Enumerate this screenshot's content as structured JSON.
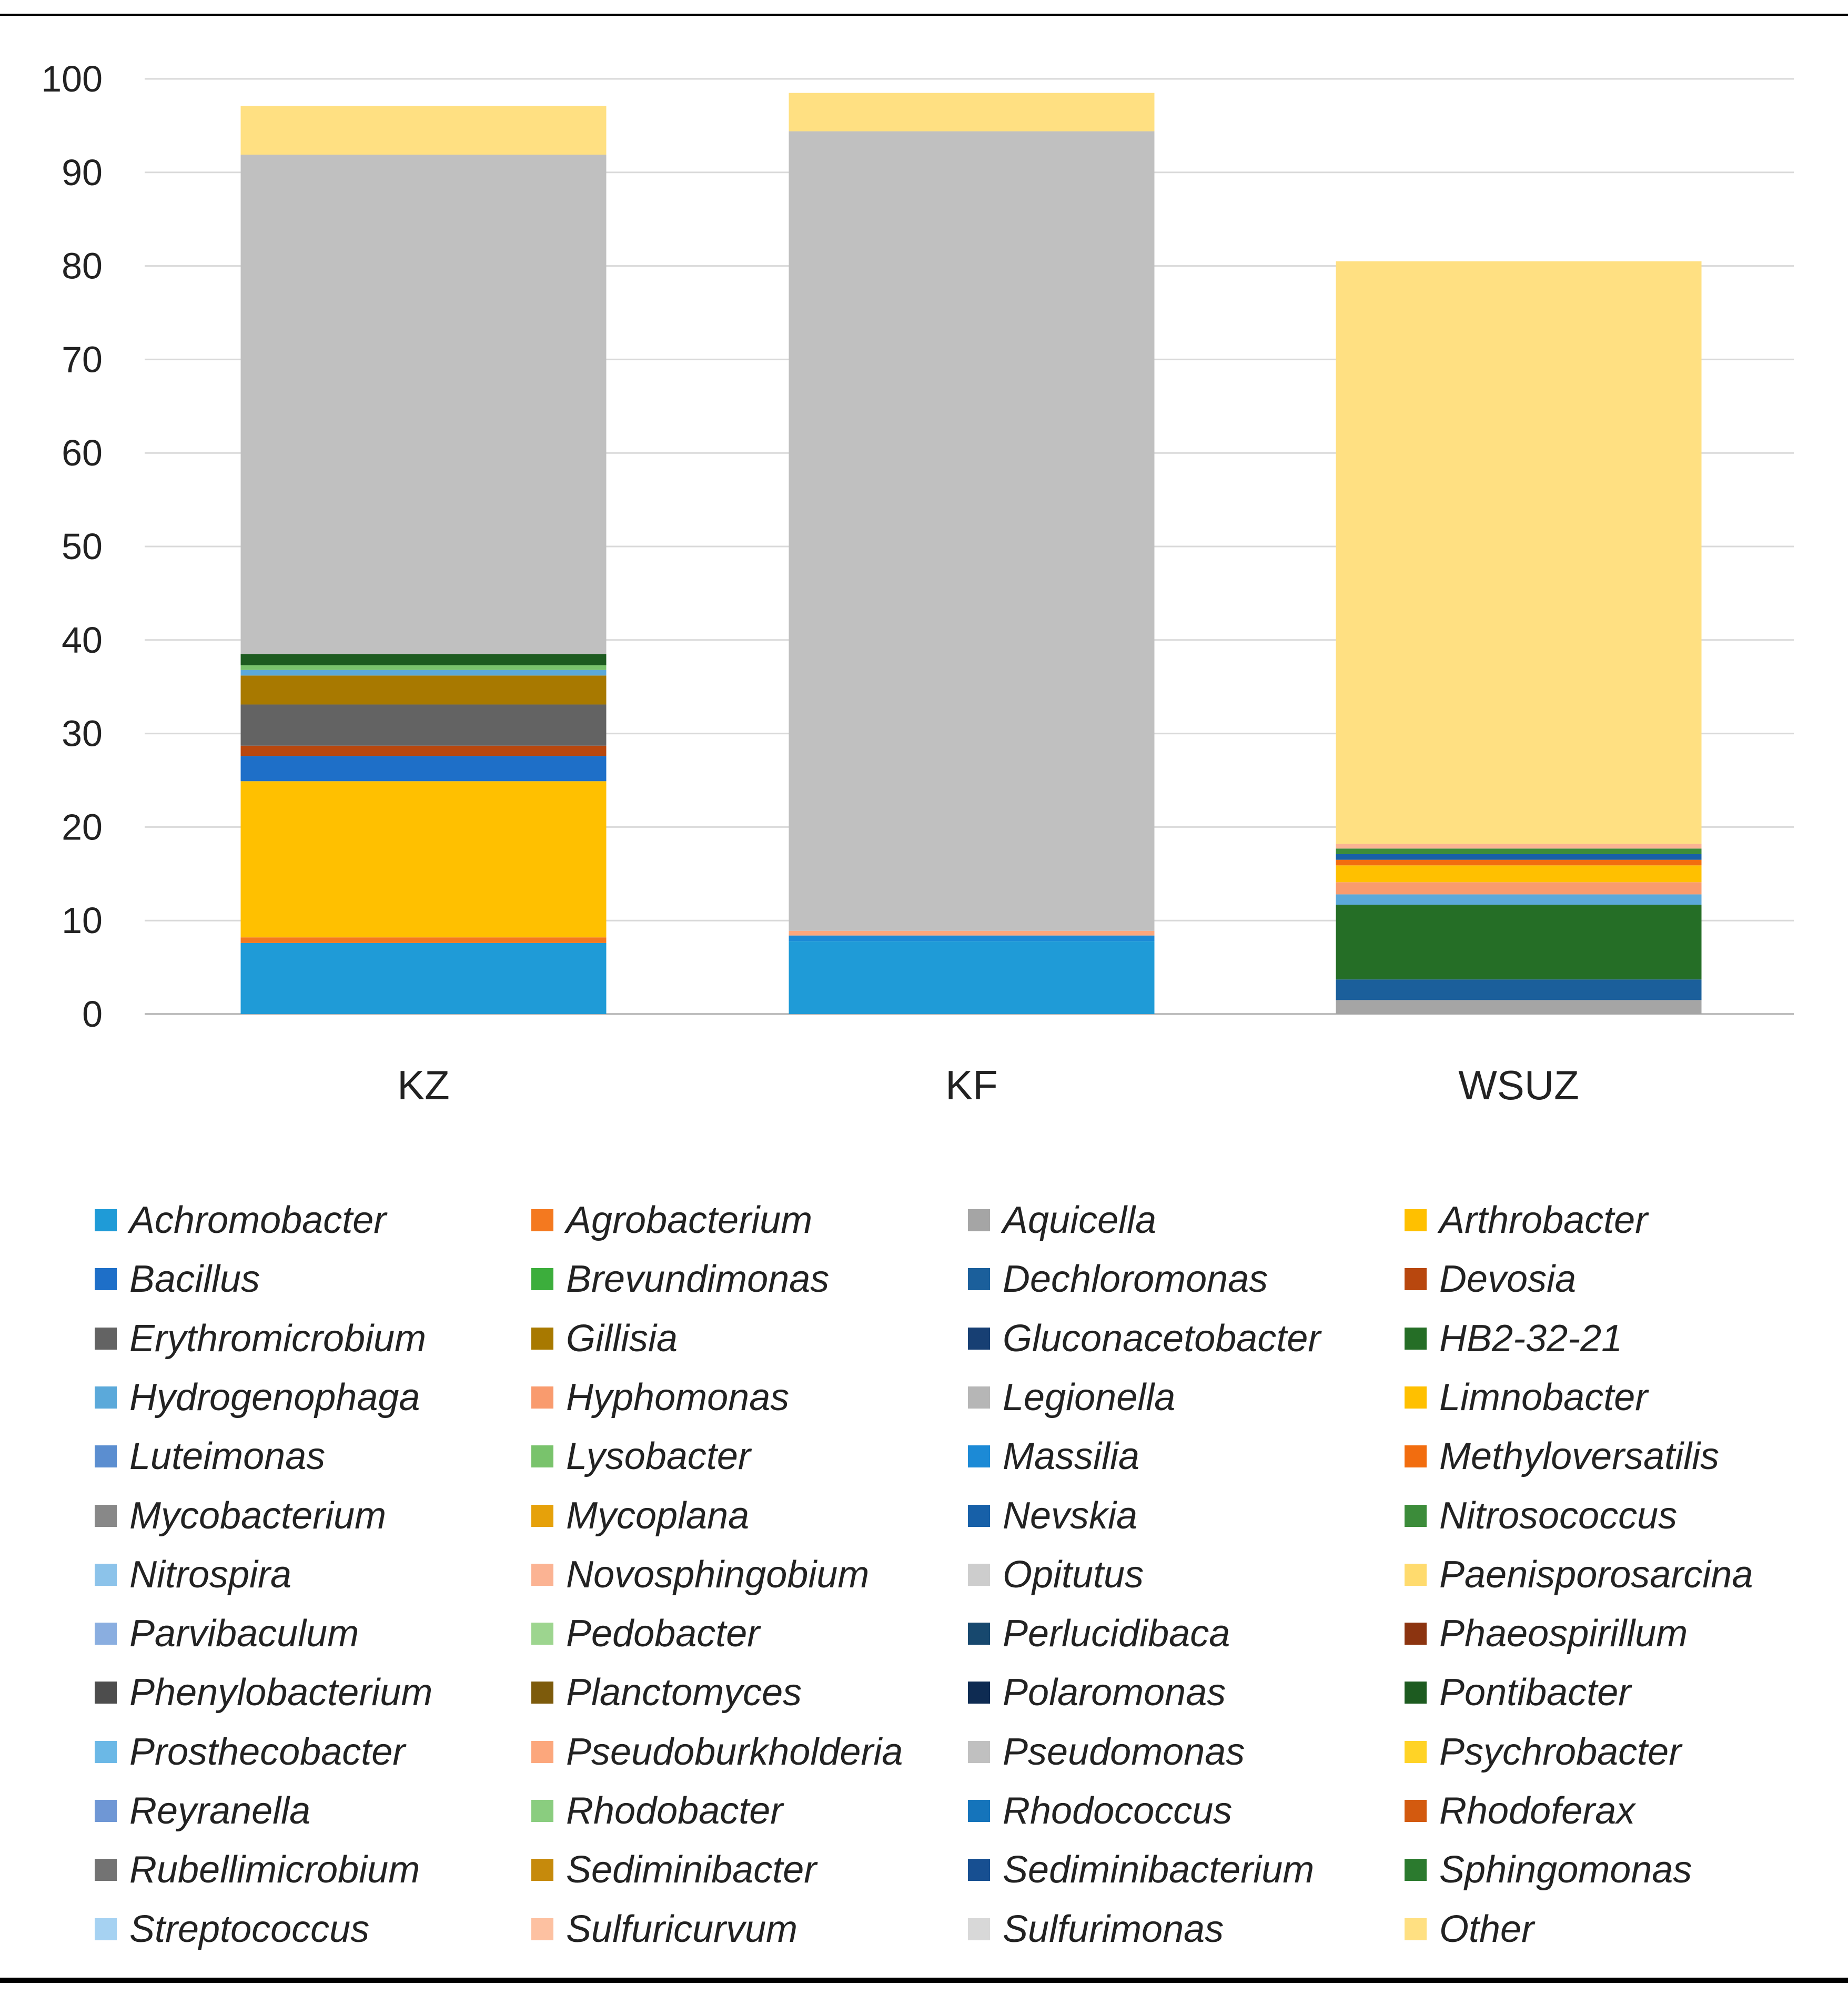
{
  "chart_data": {
    "type": "bar",
    "stacked": true,
    "title": "",
    "xlabel": "",
    "ylabel": "",
    "ylim": [
      0,
      100
    ],
    "yticks": [
      0,
      10,
      20,
      30,
      40,
      50,
      60,
      70,
      80,
      90,
      100
    ],
    "grid": true,
    "legend_position": "bottom",
    "categories": [
      "KZ",
      "KF",
      "WSUZ"
    ],
    "series": [
      {
        "name": "Achromobacter",
        "color": "#1f9bd7",
        "values": [
          7.6,
          7.8,
          0
        ]
      },
      {
        "name": "Agrobacterium",
        "color": "#f4791f",
        "values": [
          0.6,
          0,
          0
        ]
      },
      {
        "name": "Aquicella",
        "color": "#a5a5a5",
        "values": [
          0,
          0,
          1.5
        ]
      },
      {
        "name": "Arthrobacter",
        "color": "#ffc000",
        "values": [
          16.7,
          0,
          0
        ]
      },
      {
        "name": "Bacillus",
        "color": "#1e6fc8",
        "values": [
          2.7,
          0,
          0
        ]
      },
      {
        "name": "Brevundimonas",
        "color": "#3cae3c",
        "values": [
          0,
          0,
          0
        ]
      },
      {
        "name": "Dechloromonas",
        "color": "#1b5f9b",
        "values": [
          0,
          0,
          2.2
        ]
      },
      {
        "name": "Devosia",
        "color": "#b8470e",
        "values": [
          1.1,
          0,
          0
        ]
      },
      {
        "name": "Erythromicrobium",
        "color": "#636363",
        "values": [
          4.4,
          0,
          0
        ]
      },
      {
        "name": "Gillisia",
        "color": "#a87900",
        "values": [
          3.1,
          0,
          0
        ]
      },
      {
        "name": "Gluconacetobacter",
        "color": "#173f73",
        "values": [
          0,
          0,
          0
        ]
      },
      {
        "name": "HB2-32-21",
        "color": "#256e26",
        "values": [
          0,
          0,
          8.0
        ]
      },
      {
        "name": "Hydrogenophaga",
        "color": "#5ba9da",
        "values": [
          0.6,
          0,
          1.1
        ]
      },
      {
        "name": "Hyphomonas",
        "color": "#f99b6e",
        "values": [
          0,
          0,
          1.3
        ]
      },
      {
        "name": "Legionella",
        "color": "#b6b6b6",
        "values": [
          0,
          0,
          0
        ]
      },
      {
        "name": "Limnobacter",
        "color": "#ffc000",
        "values": [
          0,
          0,
          1.8
        ]
      },
      {
        "name": "Luteimonas",
        "color": "#5b8ed0",
        "values": [
          0,
          0,
          0
        ]
      },
      {
        "name": "Lysobacter",
        "color": "#79c36c",
        "values": [
          0.5,
          0,
          0
        ]
      },
      {
        "name": "Massilia",
        "color": "#1c8ad6",
        "values": [
          0,
          0.6,
          0
        ]
      },
      {
        "name": "Methyloversatilis",
        "color": "#f26d0f",
        "values": [
          0,
          0,
          0.6
        ]
      },
      {
        "name": "Mycobacterium",
        "color": "#888888",
        "values": [
          0,
          0,
          0
        ]
      },
      {
        "name": "Mycoplana",
        "color": "#e6a10a",
        "values": [
          0,
          0,
          0
        ]
      },
      {
        "name": "Nevskia",
        "color": "#1760a8",
        "values": [
          0,
          0,
          0.6
        ]
      },
      {
        "name": "Nitrosococcus",
        "color": "#3c8c3a",
        "values": [
          0,
          0,
          0.6
        ]
      },
      {
        "name": "Nitrospira",
        "color": "#8cc3ea",
        "values": [
          0,
          0,
          0
        ]
      },
      {
        "name": "Novosphingobium",
        "color": "#fbb393",
        "values": [
          0,
          0,
          0.5
        ]
      },
      {
        "name": "Opitutus",
        "color": "#cdcdcd",
        "values": [
          0,
          0,
          0
        ]
      },
      {
        "name": "Paenisporosarcina",
        "color": "#ffdb6e",
        "values": [
          0,
          0,
          0
        ]
      },
      {
        "name": "Parvibaculum",
        "color": "#8aaee0",
        "values": [
          0,
          0,
          0
        ]
      },
      {
        "name": "Pedobacter",
        "color": "#9dd58f",
        "values": [
          0,
          0,
          0
        ]
      },
      {
        "name": "Perlucidibaca",
        "color": "#17486e",
        "values": [
          0,
          0,
          0
        ]
      },
      {
        "name": "Phaeospirillum",
        "color": "#8c3410",
        "values": [
          0,
          0,
          0
        ]
      },
      {
        "name": "Phenylobacterium",
        "color": "#4d4d4d",
        "values": [
          0,
          0,
          0
        ]
      },
      {
        "name": "Planctomyces",
        "color": "#7d5b0c",
        "values": [
          0,
          0,
          0
        ]
      },
      {
        "name": "Polaromonas",
        "color": "#0e2b52",
        "values": [
          0,
          0,
          0
        ]
      },
      {
        "name": "Pontibacter",
        "color": "#1d5b20",
        "values": [
          1.2,
          0,
          0
        ]
      },
      {
        "name": "Prosthecobacter",
        "color": "#6bb8e6",
        "values": [
          0,
          0,
          0
        ]
      },
      {
        "name": "Pseudoburkholderia",
        "color": "#fca77c",
        "values": [
          0,
          0.5,
          0
        ]
      },
      {
        "name": "Pseudomonas",
        "color": "#c0c0c0",
        "values": [
          53.4,
          85.5,
          0
        ]
      },
      {
        "name": "Psychrobacter",
        "color": "#ffd326",
        "values": [
          0,
          0,
          0
        ]
      },
      {
        "name": "Reyranella",
        "color": "#6f97d5",
        "values": [
          0,
          0,
          0
        ]
      },
      {
        "name": "Rhodobacter",
        "color": "#8acd7f",
        "values": [
          0,
          0,
          0
        ]
      },
      {
        "name": "Rhodococcus",
        "color": "#1574bb",
        "values": [
          0,
          0,
          0
        ]
      },
      {
        "name": "Rhodoferax",
        "color": "#d35a0f",
        "values": [
          0,
          0,
          0
        ]
      },
      {
        "name": "Rubellimicrobium",
        "color": "#737373",
        "values": [
          0,
          0,
          0
        ]
      },
      {
        "name": "Sediminibacter",
        "color": "#c68a0c",
        "values": [
          0,
          0,
          0
        ]
      },
      {
        "name": "Sediminibacterium",
        "color": "#174f91",
        "values": [
          0,
          0,
          0
        ]
      },
      {
        "name": "Sphingomonas",
        "color": "#2b7a2e",
        "values": [
          0,
          0,
          0
        ]
      },
      {
        "name": "Streptococcus",
        "color": "#a6d2f2",
        "values": [
          0,
          0,
          0
        ]
      },
      {
        "name": "Sulfuricurvum",
        "color": "#fdc1a1",
        "values": [
          0,
          0,
          0
        ]
      },
      {
        "name": "Sulfurimonas",
        "color": "#d8d8d8",
        "values": [
          0,
          0,
          0
        ]
      },
      {
        "name": "Other",
        "color": "#ffe082",
        "values": [
          5.2,
          4.1,
          62.3
        ]
      }
    ]
  }
}
